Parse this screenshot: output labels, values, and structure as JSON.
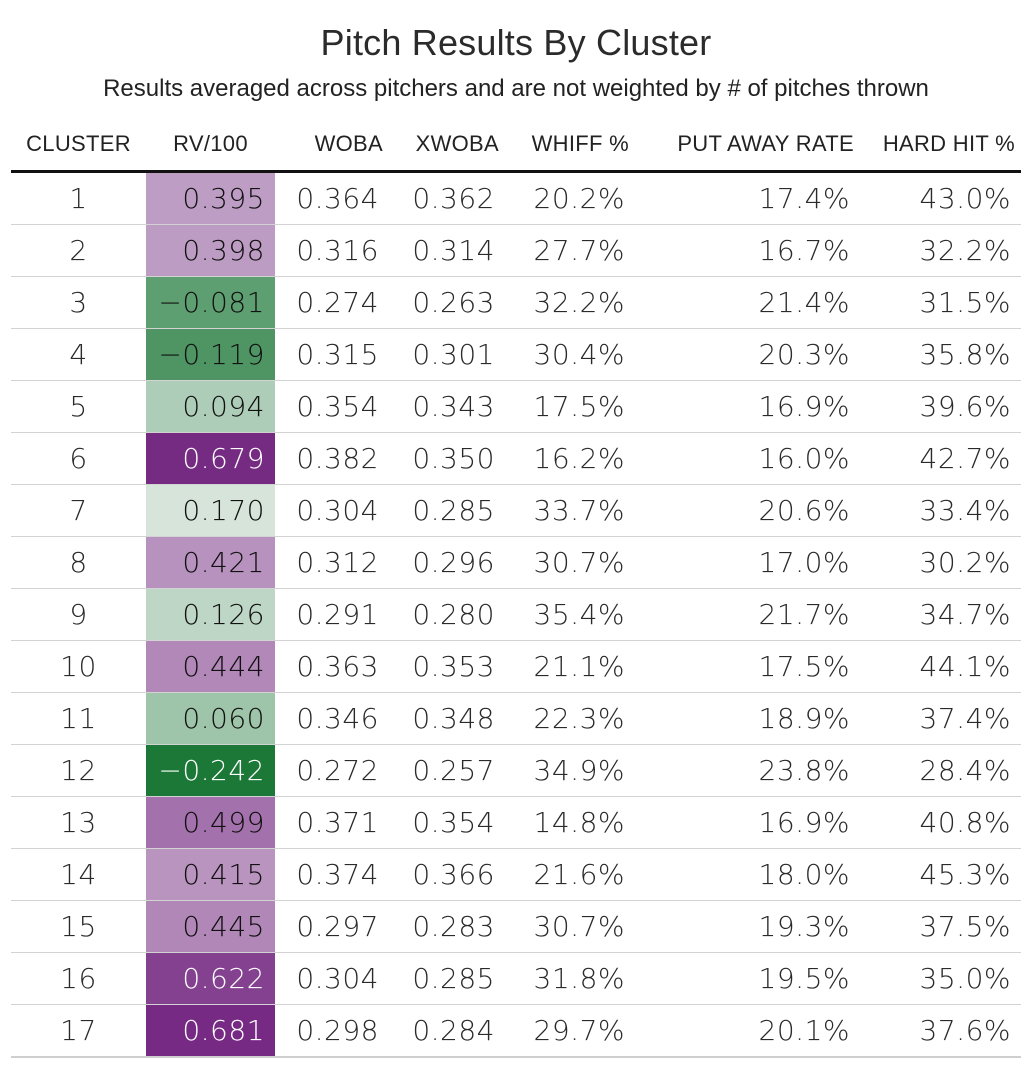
{
  "title": "Pitch Results By Cluster",
  "subtitle": "Results averaged across pitchers and are not weighted by # of pitches thrown",
  "chart_data": {
    "type": "table",
    "columns": [
      "CLUSTER",
      "RV/100",
      "WOBA",
      "XWOBA",
      "WHIFF %",
      "PUT AWAY RATE",
      "HARD HIT %"
    ],
    "rows": [
      {
        "cluster": "1",
        "rv": "0.395",
        "rv_value": 0.395,
        "woba": "0.364",
        "xwoba": "0.362",
        "whiff": "20.2%",
        "putaway": "17.4%",
        "hardhit": "43.0%"
      },
      {
        "cluster": "2",
        "rv": "0.398",
        "rv_value": 0.398,
        "woba": "0.316",
        "xwoba": "0.314",
        "whiff": "27.7%",
        "putaway": "16.7%",
        "hardhit": "32.2%"
      },
      {
        "cluster": "3",
        "rv": "−0.081",
        "rv_value": -0.081,
        "woba": "0.274",
        "xwoba": "0.263",
        "whiff": "32.2%",
        "putaway": "21.4%",
        "hardhit": "31.5%"
      },
      {
        "cluster": "4",
        "rv": "−0.119",
        "rv_value": -0.119,
        "woba": "0.315",
        "xwoba": "0.301",
        "whiff": "30.4%",
        "putaway": "20.3%",
        "hardhit": "35.8%"
      },
      {
        "cluster": "5",
        "rv": "0.094",
        "rv_value": 0.094,
        "woba": "0.354",
        "xwoba": "0.343",
        "whiff": "17.5%",
        "putaway": "16.9%",
        "hardhit": "39.6%"
      },
      {
        "cluster": "6",
        "rv": "0.679",
        "rv_value": 0.679,
        "woba": "0.382",
        "xwoba": "0.350",
        "whiff": "16.2%",
        "putaway": "16.0%",
        "hardhit": "42.7%"
      },
      {
        "cluster": "7",
        "rv": "0.170",
        "rv_value": 0.17,
        "woba": "0.304",
        "xwoba": "0.285",
        "whiff": "33.7%",
        "putaway": "20.6%",
        "hardhit": "33.4%"
      },
      {
        "cluster": "8",
        "rv": "0.421",
        "rv_value": 0.421,
        "woba": "0.312",
        "xwoba": "0.296",
        "whiff": "30.7%",
        "putaway": "17.0%",
        "hardhit": "30.2%"
      },
      {
        "cluster": "9",
        "rv": "0.126",
        "rv_value": 0.126,
        "woba": "0.291",
        "xwoba": "0.280",
        "whiff": "35.4%",
        "putaway": "21.7%",
        "hardhit": "34.7%"
      },
      {
        "cluster": "10",
        "rv": "0.444",
        "rv_value": 0.444,
        "woba": "0.363",
        "xwoba": "0.353",
        "whiff": "21.1%",
        "putaway": "17.5%",
        "hardhit": "44.1%"
      },
      {
        "cluster": "11",
        "rv": "0.060",
        "rv_value": 0.06,
        "woba": "0.346",
        "xwoba": "0.348",
        "whiff": "22.3%",
        "putaway": "18.9%",
        "hardhit": "37.4%"
      },
      {
        "cluster": "12",
        "rv": "−0.242",
        "rv_value": -0.242,
        "woba": "0.272",
        "xwoba": "0.257",
        "whiff": "34.9%",
        "putaway": "23.8%",
        "hardhit": "28.4%"
      },
      {
        "cluster": "13",
        "rv": "0.499",
        "rv_value": 0.499,
        "woba": "0.371",
        "xwoba": "0.354",
        "whiff": "14.8%",
        "putaway": "16.9%",
        "hardhit": "40.8%"
      },
      {
        "cluster": "14",
        "rv": "0.415",
        "rv_value": 0.415,
        "woba": "0.374",
        "xwoba": "0.366",
        "whiff": "21.6%",
        "putaway": "18.0%",
        "hardhit": "45.3%"
      },
      {
        "cluster": "15",
        "rv": "0.445",
        "rv_value": 0.445,
        "woba": "0.297",
        "xwoba": "0.283",
        "whiff": "30.7%",
        "putaway": "19.3%",
        "hardhit": "37.5%"
      },
      {
        "cluster": "16",
        "rv": "0.622",
        "rv_value": 0.622,
        "woba": "0.304",
        "xwoba": "0.285",
        "whiff": "31.8%",
        "putaway": "19.5%",
        "hardhit": "35.0%"
      },
      {
        "cluster": "17",
        "rv": "0.681",
        "rv_value": 0.681,
        "woba": "0.298",
        "xwoba": "0.284",
        "whiff": "29.7%",
        "putaway": "20.1%",
        "hardhit": "37.6%"
      }
    ],
    "rv_color_scale": {
      "type": "diverging",
      "low_color": "#1b7837",
      "mid_color": "#f7f7f7",
      "high_color": "#762a83",
      "domain": [
        -0.242,
        0.2195,
        0.681
      ]
    }
  }
}
